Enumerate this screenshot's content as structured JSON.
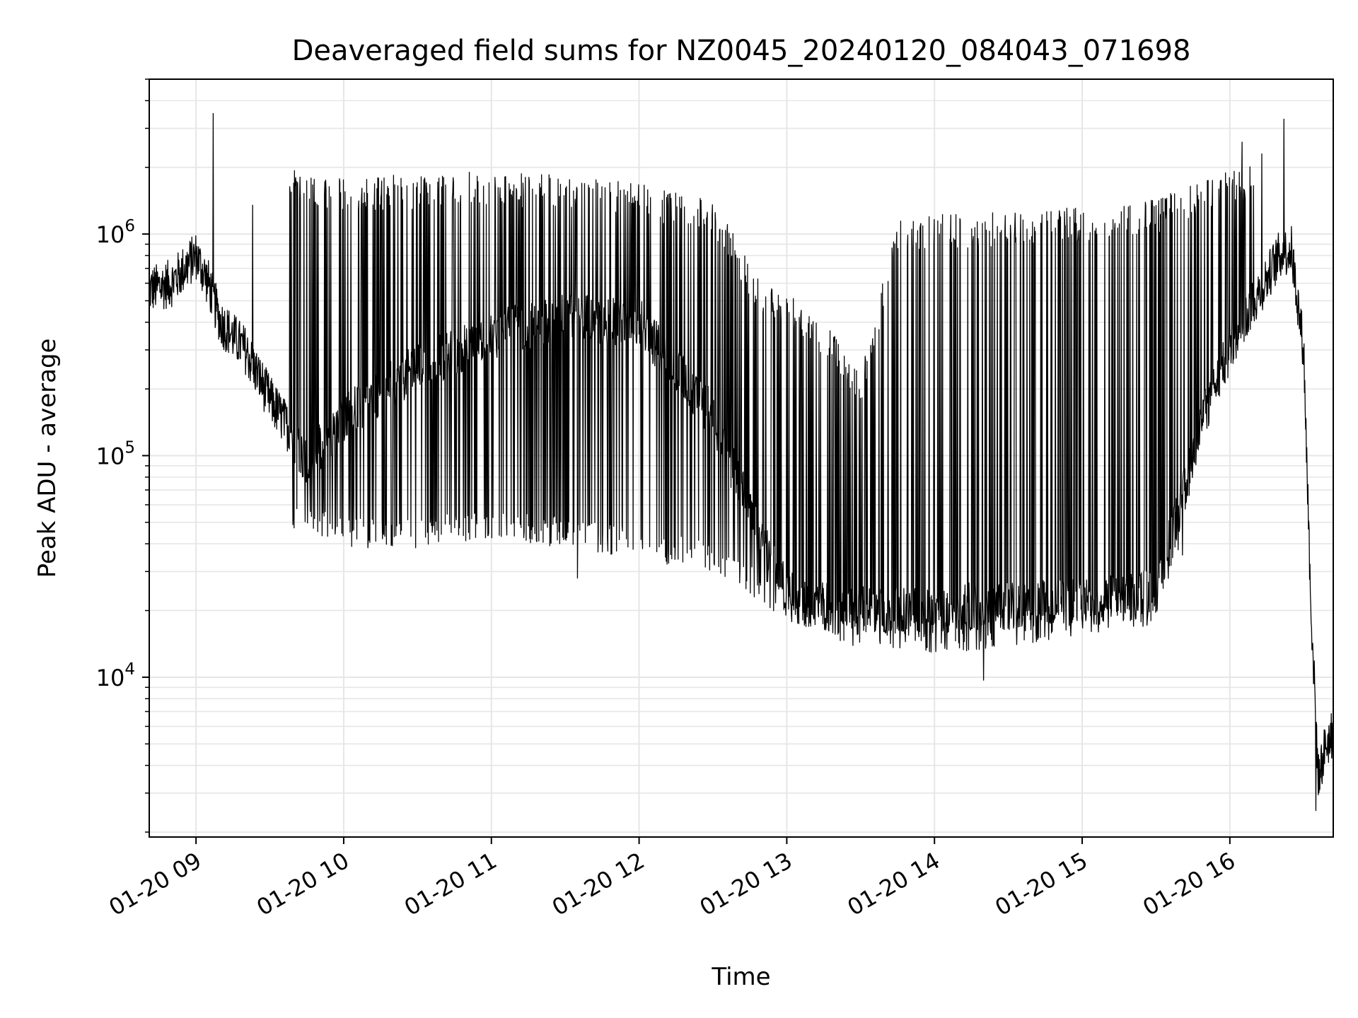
{
  "chart_data": {
    "type": "line",
    "title": "Deaveraged field sums for NZ0045_20240120_084043_071698",
    "xlabel": "Time",
    "ylabel": "Peak ADU - average",
    "y_scale": "log",
    "grid": true,
    "line_color": "#000000",
    "grid_color": "#e6e6e6",
    "xlim": [
      "2024-01-20T08:41",
      "2024-01-20T16:42"
    ],
    "ylim": [
      1900,
      5000000
    ],
    "x_ticks": [
      {
        "value": "2024-01-20T09:00",
        "label": "01-20 09"
      },
      {
        "value": "2024-01-20T10:00",
        "label": "01-20 10"
      },
      {
        "value": "2024-01-20T11:00",
        "label": "01-20 11"
      },
      {
        "value": "2024-01-20T12:00",
        "label": "01-20 12"
      },
      {
        "value": "2024-01-20T13:00",
        "label": "01-20 13"
      },
      {
        "value": "2024-01-20T14:00",
        "label": "01-20 14"
      },
      {
        "value": "2024-01-20T15:00",
        "label": "01-20 15"
      },
      {
        "value": "2024-01-20T16:00",
        "label": "01-20 16"
      }
    ],
    "y_ticks": [
      {
        "value": 10000,
        "base": "10",
        "exp": "4"
      },
      {
        "value": 100000,
        "base": "10",
        "exp": "5"
      },
      {
        "value": 1000000,
        "base": "10",
        "exp": "6"
      }
    ],
    "series": [
      {
        "baseline": [
          [
            "2024-01-20T08:41",
            560000
          ],
          [
            "2024-01-20T08:50",
            600000
          ],
          [
            "2024-01-20T09:00",
            800000
          ],
          [
            "2024-01-20T09:05",
            600000
          ],
          [
            "2024-01-20T09:10",
            400000
          ],
          [
            "2024-01-20T09:20",
            300000
          ],
          [
            "2024-01-20T09:30",
            180000
          ],
          [
            "2024-01-20T09:40",
            120000
          ],
          [
            "2024-01-20T09:45",
            90000
          ],
          [
            "2024-01-20T10:00",
            150000
          ],
          [
            "2024-01-20T10:30",
            250000
          ],
          [
            "2024-01-20T11:00",
            350000
          ],
          [
            "2024-01-20T11:30",
            420000
          ],
          [
            "2024-01-20T12:00",
            400000
          ],
          [
            "2024-01-20T12:30",
            150000
          ],
          [
            "2024-01-20T12:50",
            40000
          ],
          [
            "2024-01-20T13:00",
            25000
          ],
          [
            "2024-01-20T13:20",
            20000
          ],
          [
            "2024-01-20T13:40",
            20000
          ],
          [
            "2024-01-20T14:00",
            20000
          ],
          [
            "2024-01-20T14:20",
            21000
          ],
          [
            "2024-01-20T14:40",
            21000
          ],
          [
            "2024-01-20T15:00",
            22000
          ],
          [
            "2024-01-20T15:20",
            23000
          ],
          [
            "2024-01-20T15:30",
            25000
          ],
          [
            "2024-01-20T15:40",
            60000
          ],
          [
            "2024-01-20T15:50",
            160000
          ],
          [
            "2024-01-20T16:00",
            300000
          ],
          [
            "2024-01-20T16:10",
            500000
          ],
          [
            "2024-01-20T16:20",
            800000
          ],
          [
            "2024-01-20T16:25",
            850000
          ],
          [
            "2024-01-20T16:30",
            300000
          ],
          [
            "2024-01-20T16:33",
            20000
          ],
          [
            "2024-01-20T16:36",
            3500
          ],
          [
            "2024-01-20T16:39",
            5000
          ],
          [
            "2024-01-20T16:42",
            5500
          ]
        ],
        "peaks": [
          [
            "2024-01-20T09:38",
            1700000
          ],
          [
            "2024-01-20T10:00",
            1500000
          ],
          [
            "2024-01-20T10:30",
            1550000
          ],
          [
            "2024-01-20T11:00",
            1600000
          ],
          [
            "2024-01-20T11:30",
            1550000
          ],
          [
            "2024-01-20T12:00",
            1400000
          ],
          [
            "2024-01-20T12:30",
            1200000
          ],
          [
            "2024-01-20T12:50",
            500000
          ],
          [
            "2024-01-20T13:10",
            400000
          ],
          [
            "2024-01-20T13:30",
            200000
          ],
          [
            "2024-01-20T13:45",
            1000000
          ],
          [
            "2024-01-20T14:30",
            1050000
          ],
          [
            "2024-01-20T15:00",
            1100000
          ],
          [
            "2024-01-20T15:30",
            1200000
          ],
          [
            "2024-01-20T15:50",
            1500000
          ],
          [
            "2024-01-20T16:10",
            1700000
          ]
        ],
        "troughs": [
          [
            "2024-01-20T09:38",
            55000
          ],
          [
            "2024-01-20T10:00",
            45000
          ],
          [
            "2024-01-20T10:30",
            45000
          ],
          [
            "2024-01-20T11:00",
            50000
          ],
          [
            "2024-01-20T11:30",
            45000
          ],
          [
            "2024-01-20T12:00",
            40000
          ],
          [
            "2024-01-20T12:30",
            35000
          ],
          [
            "2024-01-20T12:50",
            25000
          ],
          [
            "2024-01-20T13:10",
            18000
          ],
          [
            "2024-01-20T13:30",
            16000
          ],
          [
            "2024-01-20T14:00",
            15000
          ],
          [
            "2024-01-20T14:30",
            16000
          ],
          [
            "2024-01-20T15:00",
            18000
          ],
          [
            "2024-01-20T15:30",
            20000
          ],
          [
            "2024-01-20T15:42",
            40000
          ]
        ],
        "spikes": [
          [
            "2024-01-20T09:07",
            3500000
          ],
          [
            "2024-01-20T09:23",
            1350000
          ],
          [
            "2024-01-20T10:51",
            1900000
          ],
          [
            "2024-01-20T11:35",
            28000
          ],
          [
            "2024-01-20T14:20",
            9700
          ],
          [
            "2024-01-20T16:05",
            2600000
          ],
          [
            "2024-01-20T16:13",
            2300000
          ],
          [
            "2024-01-20T16:22",
            3300000
          ],
          [
            "2024-01-20T16:35",
            2500
          ]
        ]
      }
    ]
  }
}
